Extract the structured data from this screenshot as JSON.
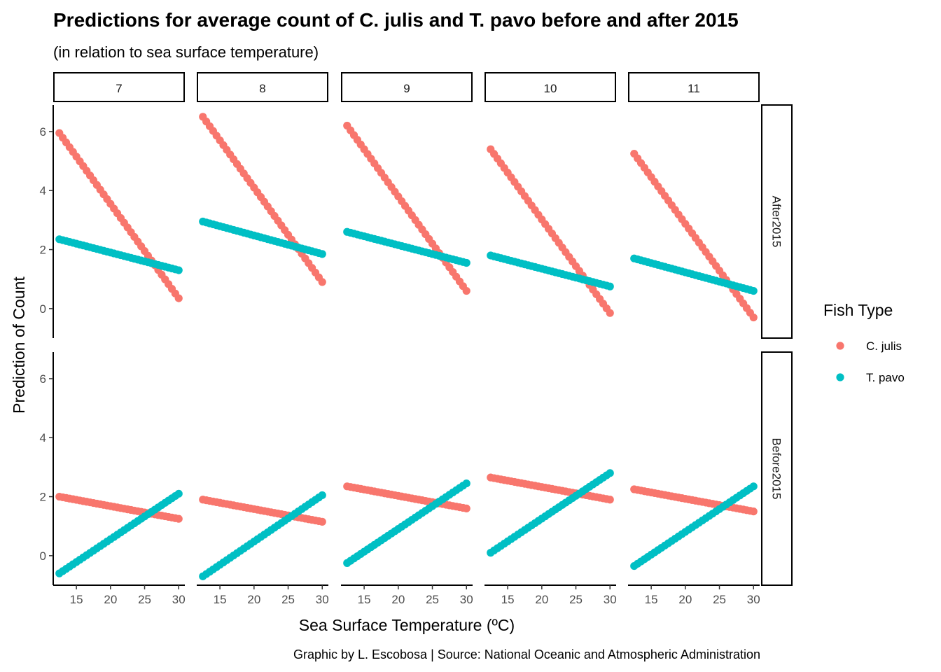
{
  "chart_data": {
    "type": "scatter",
    "title": "Predictions for average count of C. julis and T. pavo before and after 2015",
    "subtitle": "(in relation to sea surface temperature)",
    "xlabel": "Sea Surface Temperature (ºC)",
    "ylabel": "Prediction of Count",
    "caption": "Graphic by L. Escobosa | Source: National Oceanic and Atmospheric Administration",
    "legend_title": "Fish Type",
    "legend_position": "right",
    "grid": false,
    "x_range": [
      12.5,
      30
    ],
    "xlim": [
      11.6,
      30.9
    ],
    "ylim": [
      -1.0,
      6.9
    ],
    "x_ticks": [
      "15",
      "20",
      "25",
      "30"
    ],
    "y_ticks": [
      "0",
      "2",
      "4",
      "6"
    ],
    "x_tick_values": [
      15,
      20,
      25,
      30
    ],
    "y_tick_values": [
      0,
      2,
      4,
      6
    ],
    "facet_columns": [
      "7",
      "8",
      "9",
      "10",
      "11"
    ],
    "facet_rows": [
      "After2015",
      "Before2015"
    ],
    "series": [
      {
        "name": "C. julis",
        "color": "#F8766D"
      },
      {
        "name": "T. pavo",
        "color": "#00BFC4"
      }
    ],
    "panels": [
      {
        "column": "7",
        "row": "After2015",
        "lines": [
          {
            "series": "C. julis",
            "y_start": 5.95,
            "y_end": 0.35
          },
          {
            "series": "T. pavo",
            "y_start": 2.35,
            "y_end": 1.3
          }
        ]
      },
      {
        "column": "8",
        "row": "After2015",
        "lines": [
          {
            "series": "C. julis",
            "y_start": 6.5,
            "y_end": 0.9
          },
          {
            "series": "T. pavo",
            "y_start": 2.95,
            "y_end": 1.85
          }
        ]
      },
      {
        "column": "9",
        "row": "After2015",
        "lines": [
          {
            "series": "C. julis",
            "y_start": 6.2,
            "y_end": 0.6
          },
          {
            "series": "T. pavo",
            "y_start": 2.6,
            "y_end": 1.55
          }
        ]
      },
      {
        "column": "10",
        "row": "After2015",
        "lines": [
          {
            "series": "C. julis",
            "y_start": 5.4,
            "y_end": -0.15
          },
          {
            "series": "T. pavo",
            "y_start": 1.8,
            "y_end": 0.75
          }
        ]
      },
      {
        "column": "11",
        "row": "After2015",
        "lines": [
          {
            "series": "C. julis",
            "y_start": 5.25,
            "y_end": -0.3
          },
          {
            "series": "T. pavo",
            "y_start": 1.7,
            "y_end": 0.6
          }
        ]
      },
      {
        "column": "7",
        "row": "Before2015",
        "lines": [
          {
            "series": "C. julis",
            "y_start": 2.0,
            "y_end": 1.25
          },
          {
            "series": "T. pavo",
            "y_start": -0.6,
            "y_end": 2.1
          }
        ]
      },
      {
        "column": "8",
        "row": "Before2015",
        "lines": [
          {
            "series": "C. julis",
            "y_start": 1.9,
            "y_end": 1.15
          },
          {
            "series": "T. pavo",
            "y_start": -0.7,
            "y_end": 2.05
          }
        ]
      },
      {
        "column": "9",
        "row": "Before2015",
        "lines": [
          {
            "series": "C. julis",
            "y_start": 2.35,
            "y_end": 1.6
          },
          {
            "series": "T. pavo",
            "y_start": -0.25,
            "y_end": 2.45
          }
        ]
      },
      {
        "column": "10",
        "row": "Before2015",
        "lines": [
          {
            "series": "C. julis",
            "y_start": 2.65,
            "y_end": 1.9
          },
          {
            "series": "T. pavo",
            "y_start": 0.1,
            "y_end": 2.8
          }
        ]
      },
      {
        "column": "11",
        "row": "Before2015",
        "lines": [
          {
            "series": "C. julis",
            "y_start": 2.25,
            "y_end": 1.5
          },
          {
            "series": "T. pavo",
            "y_start": -0.35,
            "y_end": 2.35
          }
        ]
      }
    ]
  }
}
